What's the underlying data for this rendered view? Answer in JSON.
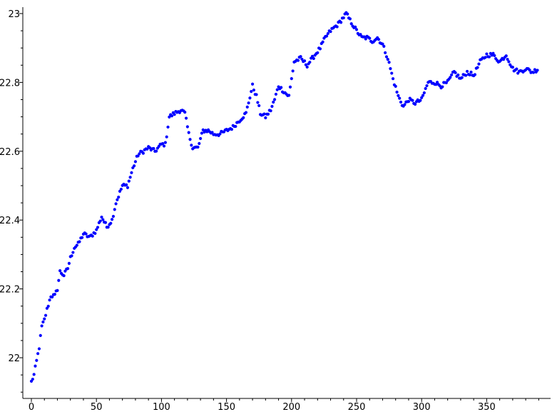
{
  "chart_data": {
    "type": "scatter",
    "title": "",
    "xlabel": "",
    "ylabel": "",
    "xlim": [
      0,
      395
    ],
    "ylim": [
      21.9,
      23.02
    ],
    "x_ticks": [
      0,
      50,
      100,
      150,
      200,
      250,
      300,
      350
    ],
    "x_tick_labels": [
      "0",
      "50",
      "100",
      "150",
      "200",
      "250",
      "300",
      "350"
    ],
    "y_ticks": [
      22.0,
      22.2,
      22.4,
      22.6,
      22.8,
      23.0
    ],
    "y_tick_labels": [
      "22",
      "22.2",
      "22.4",
      "22.6",
      "22.8",
      "23"
    ],
    "grid": false,
    "legend": "none",
    "marker_color": "#0000ff",
    "anchors": [
      [
        0,
        21.93
      ],
      [
        2,
        21.95
      ],
      [
        4,
        21.99
      ],
      [
        6,
        22.03
      ],
      [
        8,
        22.09
      ],
      [
        10,
        22.11
      ],
      [
        12,
        22.14
      ],
      [
        15,
        22.18
      ],
      [
        18,
        22.18
      ],
      [
        20,
        22.2
      ],
      [
        22,
        22.25
      ],
      [
        25,
        22.24
      ],
      [
        28,
        22.26
      ],
      [
        30,
        22.29
      ],
      [
        33,
        22.32
      ],
      [
        36,
        22.33
      ],
      [
        40,
        22.36
      ],
      [
        45,
        22.35
      ],
      [
        50,
        22.37
      ],
      [
        54,
        22.41
      ],
      [
        58,
        22.38
      ],
      [
        62,
        22.4
      ],
      [
        65,
        22.45
      ],
      [
        70,
        22.5
      ],
      [
        74,
        22.5
      ],
      [
        78,
        22.55
      ],
      [
        82,
        22.59
      ],
      [
        86,
        22.6
      ],
      [
        90,
        22.61
      ],
      [
        95,
        22.6
      ],
      [
        100,
        22.62
      ],
      [
        103,
        22.62
      ],
      [
        106,
        22.7
      ],
      [
        110,
        22.71
      ],
      [
        115,
        22.72
      ],
      [
        118,
        22.71
      ],
      [
        121,
        22.65
      ],
      [
        124,
        22.61
      ],
      [
        128,
        22.61
      ],
      [
        132,
        22.66
      ],
      [
        136,
        22.66
      ],
      [
        140,
        22.65
      ],
      [
        145,
        22.65
      ],
      [
        150,
        22.66
      ],
      [
        155,
        22.67
      ],
      [
        160,
        22.69
      ],
      [
        165,
        22.71
      ],
      [
        170,
        22.79
      ],
      [
        173,
        22.76
      ],
      [
        176,
        22.71
      ],
      [
        180,
        22.7
      ],
      [
        184,
        22.72
      ],
      [
        187,
        22.75
      ],
      [
        190,
        22.79
      ],
      [
        195,
        22.77
      ],
      [
        198,
        22.76
      ],
      [
        202,
        22.86
      ],
      [
        207,
        22.87
      ],
      [
        212,
        22.85
      ],
      [
        218,
        22.88
      ],
      [
        222,
        22.9
      ],
      [
        226,
        22.93
      ],
      [
        230,
        22.95
      ],
      [
        236,
        22.97
      ],
      [
        242,
        23.0
      ],
      [
        245,
        22.98
      ],
      [
        250,
        22.95
      ],
      [
        254,
        22.93
      ],
      [
        258,
        22.93
      ],
      [
        262,
        22.92
      ],
      [
        266,
        22.93
      ],
      [
        270,
        22.91
      ],
      [
        274,
        22.87
      ],
      [
        278,
        22.81
      ],
      [
        282,
        22.76
      ],
      [
        286,
        22.73
      ],
      [
        290,
        22.75
      ],
      [
        295,
        22.74
      ],
      [
        300,
        22.75
      ],
      [
        305,
        22.8
      ],
      [
        310,
        22.8
      ],
      [
        315,
        22.79
      ],
      [
        320,
        22.8
      ],
      [
        325,
        22.83
      ],
      [
        330,
        22.81
      ],
      [
        335,
        22.83
      ],
      [
        340,
        22.82
      ],
      [
        345,
        22.86
      ],
      [
        350,
        22.88
      ],
      [
        355,
        22.88
      ],
      [
        360,
        22.86
      ],
      [
        365,
        22.88
      ],
      [
        370,
        22.84
      ],
      [
        375,
        22.83
      ],
      [
        380,
        22.84
      ],
      [
        385,
        22.83
      ],
      [
        390,
        22.84
      ]
    ],
    "n_points": 390
  }
}
